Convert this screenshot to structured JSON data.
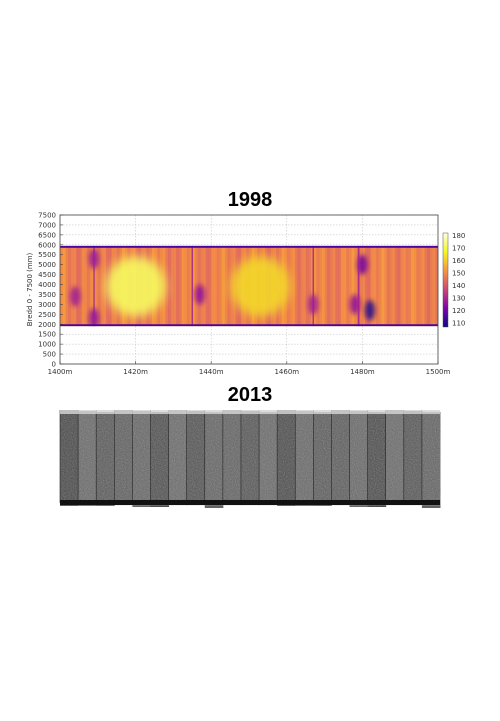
{
  "panels": {
    "top_title": "1998",
    "bottom_title": "2013"
  },
  "chart_data": [
    {
      "type": "heatmap",
      "title": "1998",
      "xlabel": "",
      "ylabel": "Bredd 0 - 7500 (mm)",
      "xlim": [
        1400,
        1500
      ],
      "ylim": [
        0,
        7500
      ],
      "x_ticks": [
        1400,
        1420,
        1440,
        1460,
        1480,
        1500
      ],
      "x_tick_labels": [
        "1400m",
        "1420m",
        "1440m",
        "1460m",
        "1480m",
        "1500m"
      ],
      "y_ticks": [
        0,
        500,
        1000,
        1500,
        2000,
        2500,
        3000,
        3500,
        4000,
        4500,
        5000,
        5500,
        6000,
        6500,
        7000,
        7500
      ],
      "y_tick_labels": [
        "0",
        "500",
        "1000",
        "1500",
        "2000",
        "2500",
        "3000",
        "3500",
        "4000",
        "4500",
        "5000",
        "5500",
        "6000",
        "6500",
        "7000",
        "7500"
      ],
      "grid": true,
      "data_extent": {
        "x": [
          1400,
          1500
        ],
        "y": [
          1900,
          5950
        ]
      },
      "colorbar": {
        "range": [
          107,
          182
        ],
        "ticks": [
          110,
          120,
          130,
          140,
          150,
          160,
          170,
          180
        ],
        "colors": [
          "#0d0887",
          "#7e03a8",
          "#cc4778",
          "#f89540",
          "#f0f921",
          "#ffffe0"
        ]
      },
      "segment_breaks": [
        1409,
        1435,
        1467,
        1479
      ],
      "bright_regions": [
        {
          "x": 1420,
          "y": 3900,
          "value": 172
        },
        {
          "x": 1453,
          "y": 3900,
          "value": 162
        }
      ],
      "dark_regions": [
        {
          "x": 1404,
          "y": 3400,
          "value": 128
        },
        {
          "x": 1409,
          "y": 2300,
          "value": 125
        },
        {
          "x": 1409,
          "y": 5300,
          "value": 126
        },
        {
          "x": 1437,
          "y": 3500,
          "value": 125
        },
        {
          "x": 1467,
          "y": 3000,
          "value": 128
        },
        {
          "x": 1480,
          "y": 5000,
          "value": 120
        },
        {
          "x": 1478,
          "y": 3000,
          "value": 125
        },
        {
          "x": 1482,
          "y": 2700,
          "value": 110
        }
      ]
    },
    {
      "type": "heatmap",
      "title": "2013",
      "xlim": [
        1400,
        1500
      ],
      "segments": 21
    }
  ]
}
